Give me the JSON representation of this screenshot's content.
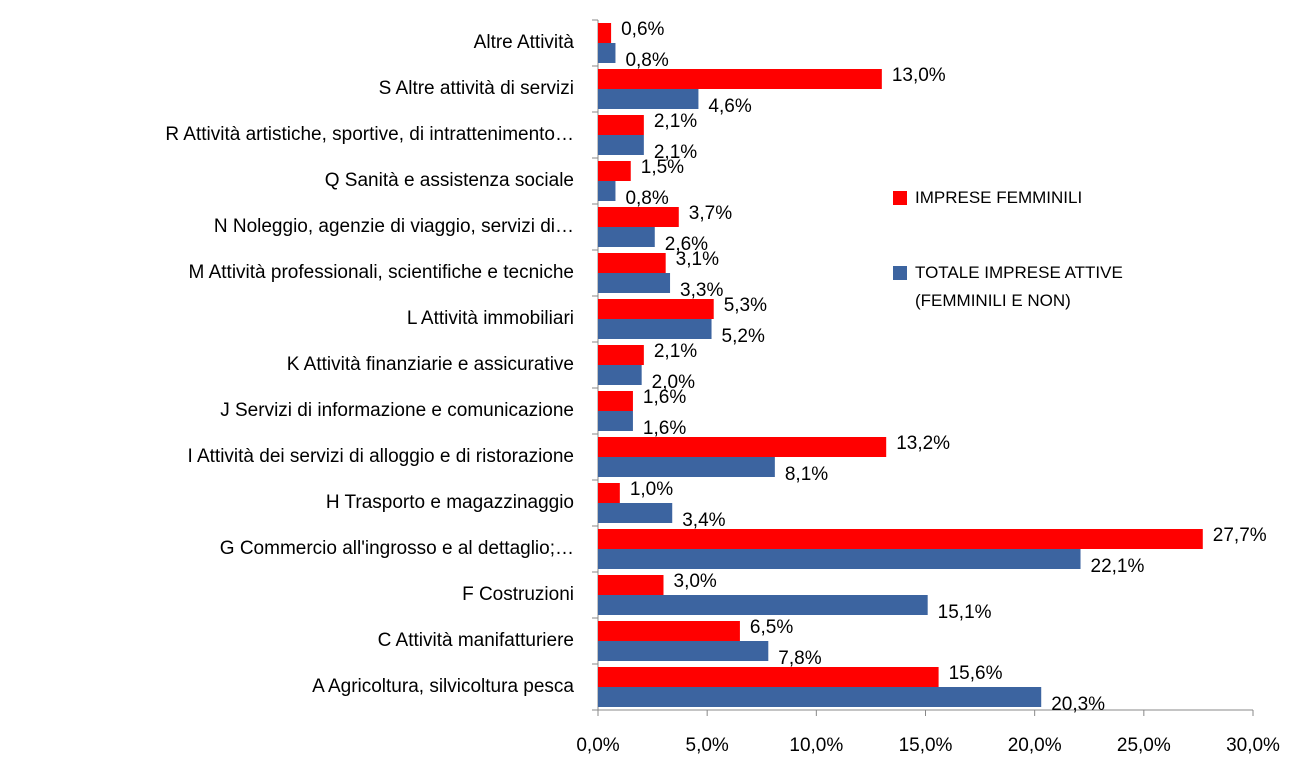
{
  "chart_data": {
    "type": "bar",
    "orientation": "horizontal",
    "categories": [
      "Altre Attività",
      "S Altre attività di servizi",
      "R Attività artistiche, sportive, di intrattenimento…",
      "Q Sanità e assistenza sociale",
      "N Noleggio, agenzie di viaggio, servizi di…",
      "M Attività professionali, scientifiche e tecniche",
      "L Attività immobiliari",
      "K Attività finanziarie e assicurative",
      "J Servizi di informazione e comunicazione",
      "I Attività dei servizi di alloggio e di ristorazione",
      "H Trasporto e magazzinaggio",
      "G Commercio all'ingrosso e al dettaglio;…",
      "F Costruzioni",
      "C Attività manifatturiere",
      "A Agricoltura, silvicoltura pesca"
    ],
    "series": [
      {
        "name": "IMPRESE FEMMINILI",
        "color": "#ff0000",
        "values": [
          0.6,
          13.0,
          2.1,
          1.5,
          3.7,
          3.1,
          5.3,
          2.1,
          1.6,
          13.2,
          1.0,
          27.7,
          3.0,
          6.5,
          15.6
        ],
        "value_labels": [
          "0,6%",
          "13,0%",
          "2,1%",
          "1,5%",
          "3,7%",
          "3,1%",
          "5,3%",
          "2,1%",
          "1,6%",
          "13,2%",
          "1,0%",
          "27,7%",
          "3,0%",
          "6,5%",
          "15,6%"
        ]
      },
      {
        "name": "TOTALE IMPRESE ATTIVE (FEMMINILI E NON)",
        "color": "#3c64a0",
        "values": [
          0.8,
          4.6,
          2.1,
          0.8,
          2.6,
          3.3,
          5.2,
          2.0,
          1.6,
          8.1,
          3.4,
          22.1,
          15.1,
          7.8,
          20.3
        ],
        "value_labels": [
          "0,8%",
          "4,6%",
          "2,1%",
          "0,8%",
          "2,6%",
          "3,3%",
          "5,2%",
          "2,0%",
          "1,6%",
          "8,1%",
          "3,4%",
          "22,1%",
          "15,1%",
          "7,8%",
          "20,3%"
        ]
      }
    ],
    "xlim": [
      0,
      30
    ],
    "xticks": [
      {
        "value": 0,
        "label": "0,0%"
      },
      {
        "value": 5,
        "label": "5,0%"
      },
      {
        "value": 10,
        "label": "10,0%"
      },
      {
        "value": 15,
        "label": "15,0%"
      },
      {
        "value": 20,
        "label": "20,0%"
      },
      {
        "value": 25,
        "label": "25,0%"
      },
      {
        "value": 30,
        "label": "30,0%"
      }
    ],
    "legend": "right"
  }
}
